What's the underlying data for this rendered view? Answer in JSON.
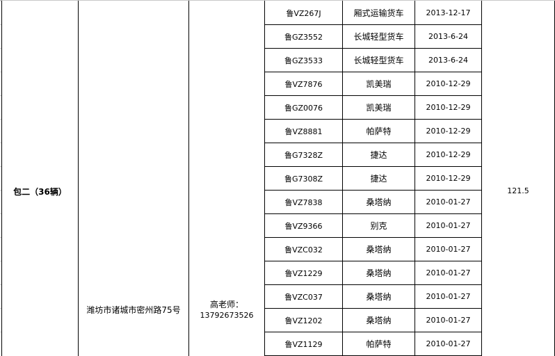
{
  "group_label": "包二（36辆）",
  "address": "潍坊市诸城市密州路75号",
  "contact": {
    "name": "高老师：",
    "phone": "13792673526"
  },
  "total": "121.5",
  "rows": [
    {
      "plate": "鲁VZ267J",
      "model": "厢式运输货车",
      "date": "2013-12-17"
    },
    {
      "plate": "鲁GZ3552",
      "model": "长城轻型货车",
      "date": "2013-6-24"
    },
    {
      "plate": "鲁GZ3533",
      "model": "长城轻型货车",
      "date": "2013-6-24"
    },
    {
      "plate": "鲁VZ7876",
      "model": "凯美瑞",
      "date": "2010-12-29"
    },
    {
      "plate": "鲁GZ0076",
      "model": "凯美瑞",
      "date": "2010-12-29"
    },
    {
      "plate": "鲁VZ8881",
      "model": "帕萨特",
      "date": "2010-12-29"
    },
    {
      "plate": "鲁G7328Z",
      "model": "捷达",
      "date": "2010-12-29"
    },
    {
      "plate": "鲁G7308Z",
      "model": "捷达",
      "date": "2010-12-29"
    },
    {
      "plate": "鲁VZ7838",
      "model": "桑塔纳",
      "date": "2010-01-27"
    },
    {
      "plate": "鲁VZ9366",
      "model": "别克",
      "date": "2010-01-27"
    },
    {
      "plate": "鲁VZC032",
      "model": "桑塔纳",
      "date": "2010-01-27"
    },
    {
      "plate": "鲁VZ1229",
      "model": "桑塔纳",
      "date": "2010-01-27"
    },
    {
      "plate": "鲁VZC037",
      "model": "桑塔纳",
      "date": "2010-01-27"
    },
    {
      "plate": "鲁VZ1202",
      "model": "桑塔纳",
      "date": "2010-01-27"
    },
    {
      "plate": "鲁VZ1129",
      "model": "帕萨特",
      "date": "2010-01-27"
    }
  ]
}
